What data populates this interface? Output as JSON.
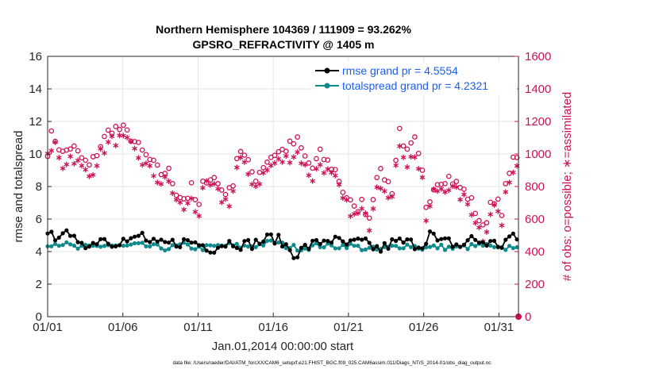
{
  "chart_data": {
    "type": "line",
    "title": "Northern Hemisphere 104369 / 111909 = 93.262%",
    "subtitle": "GPSRO_REFRACTIVITY @ 1405 m",
    "xlabel": "Jan.01,2014 00:00:00 start",
    "ylabel_left": "rmse and totalspread",
    "ylabel_right": "# of obs: o=possible; ∗=assimilated",
    "footnote": "data file: /Users/raeder/DAI/ATM_forcXX/CAM6_setup/f.e21.FHIST_BGC.f09_025.CAM6assim.011/Diags_NTrS_2014-01/obs_diag_output.nc",
    "xlim": [
      0,
      31.3
    ],
    "ylim_left": [
      0,
      16
    ],
    "ylim_right": [
      0,
      1600
    ],
    "x_ticks": [
      {
        "value": 0,
        "label": "01/01"
      },
      {
        "value": 5,
        "label": "01/06"
      },
      {
        "value": 10,
        "label": "01/11"
      },
      {
        "value": 15,
        "label": "01/16"
      },
      {
        "value": 20,
        "label": "01/21"
      },
      {
        "value": 25,
        "label": "01/26"
      },
      {
        "value": 30,
        "label": "01/31"
      }
    ],
    "y_ticks_left": [
      "0",
      "2",
      "4",
      "6",
      "8",
      "10",
      "12",
      "14",
      "16"
    ],
    "y_ticks_right": [
      "0",
      "200",
      "400",
      "600",
      "800",
      "1000",
      "1200",
      "1400",
      "1600"
    ],
    "legend": [
      {
        "label": "rmse grand pr = 4.5554",
        "color": "#000000"
      },
      {
        "label": "totalspread grand pr = 4.2321",
        "color": "#0f8a8a"
      }
    ],
    "colors": {
      "rmse": "#000000",
      "spread": "#0f8a8a",
      "obs": "#cc1154",
      "legend_text": "#1a5ff0"
    },
    "rmse_anchors": [
      [
        0,
        4.8
      ],
      [
        0.5,
        5.0
      ],
      [
        1.0,
        5.3
      ],
      [
        1.6,
        4.6
      ],
      [
        2.2,
        4.8
      ],
      [
        2.8,
        4.3
      ],
      [
        3.5,
        4.9
      ],
      [
        4.2,
        4.6
      ],
      [
        5.0,
        4.7
      ],
      [
        5.6,
        4.6
      ],
      [
        6.2,
        5.1
      ],
      [
        6.8,
        4.5
      ],
      [
        7.5,
        4.4
      ],
      [
        8.2,
        4.5
      ],
      [
        9.0,
        4.6
      ],
      [
        9.6,
        4.6
      ],
      [
        10.3,
        4.4
      ],
      [
        11.0,
        4.2
      ],
      [
        11.7,
        4.5
      ],
      [
        12.4,
        4.6
      ],
      [
        13.0,
        4.4
      ],
      [
        13.7,
        4.5
      ],
      [
        14.4,
        4.7
      ],
      [
        15.0,
        4.9
      ],
      [
        15.8,
        4.4
      ],
      [
        16.5,
        3.8
      ],
      [
        17.2,
        4.3
      ],
      [
        17.9,
        4.5
      ],
      [
        18.6,
        4.8
      ],
      [
        19.3,
        4.6
      ],
      [
        20.0,
        4.4
      ],
      [
        20.7,
        4.6
      ],
      [
        21.4,
        4.4
      ],
      [
        22.1,
        4.1
      ],
      [
        22.8,
        4.5
      ],
      [
        23.5,
        4.6
      ],
      [
        24.2,
        4.5
      ],
      [
        24.9,
        4.4
      ],
      [
        25.4,
        5.2
      ],
      [
        26.0,
        4.5
      ],
      [
        26.7,
        4.6
      ],
      [
        27.4,
        4.3
      ],
      [
        28.1,
        4.8
      ],
      [
        28.8,
        4.6
      ],
      [
        29.5,
        4.5
      ],
      [
        30.2,
        4.4
      ],
      [
        30.7,
        4.9
      ],
      [
        31.2,
        4.7
      ]
    ],
    "spread_anchors": [
      [
        0,
        4.5
      ],
      [
        1.0,
        4.5
      ],
      [
        2.0,
        4.2
      ],
      [
        3.0,
        4.3
      ],
      [
        4.0,
        4.4
      ],
      [
        5.0,
        4.3
      ],
      [
        6.0,
        4.4
      ],
      [
        7.0,
        4.3
      ],
      [
        8.0,
        4.2
      ],
      [
        9.0,
        4.4
      ],
      [
        10.0,
        4.2
      ],
      [
        11.0,
        4.3
      ],
      [
        12.0,
        4.4
      ],
      [
        13.0,
        4.3
      ],
      [
        14.0,
        4.4
      ],
      [
        15.0,
        4.6
      ],
      [
        16.0,
        4.3
      ],
      [
        17.0,
        4.2
      ],
      [
        18.0,
        4.4
      ],
      [
        19.0,
        4.3
      ],
      [
        20.0,
        4.4
      ],
      [
        21.0,
        4.2
      ],
      [
        22.0,
        4.1
      ],
      [
        23.0,
        4.3
      ],
      [
        24.0,
        4.4
      ],
      [
        25.0,
        4.2
      ],
      [
        26.0,
        4.3
      ],
      [
        27.0,
        4.2
      ],
      [
        28.0,
        4.3
      ],
      [
        29.0,
        4.4
      ],
      [
        30.0,
        4.1
      ],
      [
        31.2,
        4.4
      ]
    ],
    "obs_possible_anchors": [
      [
        0,
        1020
      ],
      [
        0.3,
        1130
      ],
      [
        1.0,
        1000
      ],
      [
        1.6,
        1050
      ],
      [
        2.2,
        980
      ],
      [
        2.8,
        920
      ],
      [
        3.5,
        1050
      ],
      [
        4.2,
        1160
      ],
      [
        5.0,
        1150
      ],
      [
        5.6,
        1100
      ],
      [
        6.2,
        1020
      ],
      [
        6.8,
        960
      ],
      [
        7.5,
        880
      ],
      [
        8.0,
        900
      ],
      [
        8.6,
        760
      ],
      [
        9.2,
        720
      ],
      [
        9.6,
        800
      ],
      [
        10.0,
        640
      ],
      [
        10.4,
        850
      ],
      [
        11.0,
        860
      ],
      [
        11.6,
        780
      ],
      [
        12.2,
        760
      ],
      [
        12.7,
        1050
      ],
      [
        13.2,
        960
      ],
      [
        13.8,
        850
      ],
      [
        14.4,
        940
      ],
      [
        15.0,
        1000
      ],
      [
        15.6,
        1020
      ],
      [
        16.1,
        1050
      ],
      [
        16.6,
        1080
      ],
      [
        17.1,
        980
      ],
      [
        17.6,
        910
      ],
      [
        18.1,
        1000
      ],
      [
        18.6,
        950
      ],
      [
        19.2,
        890
      ],
      [
        19.6,
        780
      ],
      [
        20.0,
        720
      ],
      [
        20.4,
        650
      ],
      [
        20.9,
        700
      ],
      [
        21.4,
        610
      ],
      [
        21.9,
        890
      ],
      [
        22.4,
        860
      ],
      [
        22.9,
        780
      ],
      [
        23.4,
        1150
      ],
      [
        23.9,
        1000
      ],
      [
        24.4,
        1080
      ],
      [
        24.9,
        880
      ],
      [
        25.2,
        620
      ],
      [
        25.6,
        810
      ],
      [
        26.1,
        840
      ],
      [
        26.6,
        860
      ],
      [
        27.1,
        820
      ],
      [
        27.6,
        780
      ],
      [
        28.1,
        720
      ],
      [
        28.6,
        620
      ],
      [
        29.0,
        520
      ],
      [
        29.4,
        700
      ],
      [
        29.8,
        740
      ],
      [
        30.2,
        610
      ],
      [
        30.6,
        900
      ],
      [
        31.0,
        960
      ],
      [
        31.2,
        1000
      ]
    ],
    "obs_assim_anchors": [
      [
        0,
        970
      ],
      [
        0.5,
        1060
      ],
      [
        1.0,
        930
      ],
      [
        1.6,
        990
      ],
      [
        2.2,
        920
      ],
      [
        2.8,
        860
      ],
      [
        3.5,
        1000
      ],
      [
        4.2,
        1080
      ],
      [
        5.0,
        1090
      ],
      [
        5.6,
        1040
      ],
      [
        6.2,
        960
      ],
      [
        6.8,
        900
      ],
      [
        7.5,
        820
      ],
      [
        8.0,
        840
      ],
      [
        8.6,
        700
      ],
      [
        9.2,
        660
      ],
      [
        9.6,
        740
      ],
      [
        10.0,
        600
      ],
      [
        10.4,
        800
      ],
      [
        11.0,
        800
      ],
      [
        11.6,
        720
      ],
      [
        12.2,
        700
      ],
      [
        12.7,
        980
      ],
      [
        13.2,
        900
      ],
      [
        13.8,
        800
      ],
      [
        14.4,
        880
      ],
      [
        15.0,
        940
      ],
      [
        15.6,
        960
      ],
      [
        16.1,
        980
      ],
      [
        16.6,
        1010
      ],
      [
        17.1,
        920
      ],
      [
        17.6,
        850
      ],
      [
        18.1,
        940
      ],
      [
        18.6,
        890
      ],
      [
        19.2,
        830
      ],
      [
        19.6,
        720
      ],
      [
        20.0,
        670
      ],
      [
        20.4,
        610
      ],
      [
        20.9,
        650
      ],
      [
        21.4,
        560
      ],
      [
        21.9,
        830
      ],
      [
        22.4,
        800
      ],
      [
        22.9,
        730
      ],
      [
        23.4,
        1070
      ],
      [
        23.9,
        940
      ],
      [
        24.4,
        1000
      ],
      [
        24.9,
        830
      ],
      [
        25.2,
        560
      ],
      [
        25.6,
        760
      ],
      [
        26.1,
        790
      ],
      [
        26.6,
        800
      ],
      [
        27.1,
        770
      ],
      [
        27.6,
        730
      ],
      [
        28.1,
        670
      ],
      [
        28.6,
        560
      ],
      [
        29.0,
        470
      ],
      [
        29.4,
        640
      ],
      [
        29.8,
        690
      ],
      [
        30.2,
        560
      ],
      [
        30.6,
        840
      ],
      [
        31.0,
        900
      ],
      [
        31.2,
        940
      ]
    ]
  }
}
